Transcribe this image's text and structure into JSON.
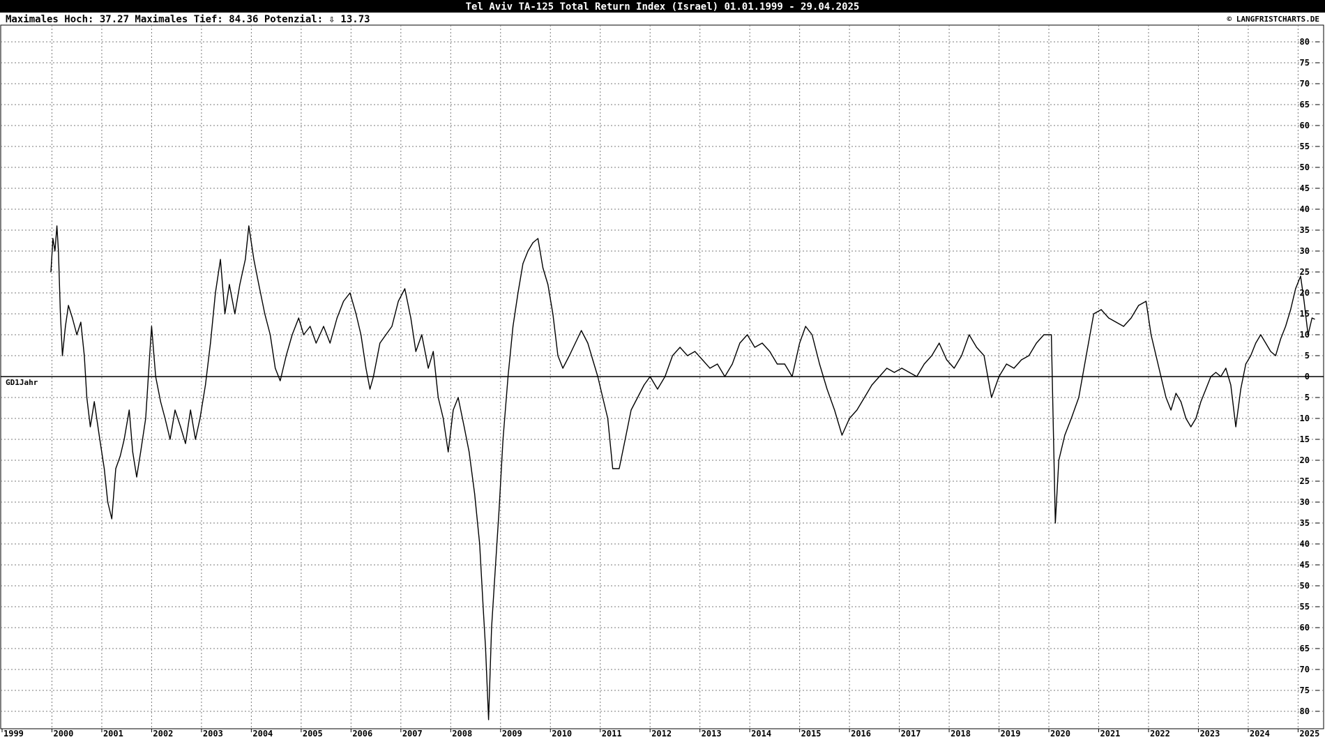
{
  "header": {
    "title": "Tel Aviv TA-125 Total Return Index (Israel) 01.01.1999 - 29.04.2025",
    "stats": "Maximales Hoch: 37.27  Maximales Tief: 84.36  Potenzial: ⇩ 13.73",
    "credit": "© LANGFRISTCHARTS.DE"
  },
  "chart_data": {
    "type": "line",
    "title": "Tel Aviv TA-125 Total Return Index (Israel) 01.01.1999 - 29.04.2025",
    "xlabel": "",
    "ylabel": "",
    "baseline_label": "GD1Jahr",
    "grid": true,
    "xlim": [
      1999.0,
      2025.33
    ],
    "ylim_note": "positive values above baseline (0), negative values below; tick labels printed as absolute values",
    "ylim": [
      -84.36,
      84.36
    ],
    "x_ticks": [
      "1999",
      "2000",
      "2001",
      "2002",
      "2003",
      "2004",
      "2005",
      "2006",
      "2007",
      "2008",
      "2009",
      "2010",
      "2011",
      "2012",
      "2013",
      "2014",
      "2015",
      "2016",
      "2017",
      "2018",
      "2019",
      "2020",
      "2021",
      "2022",
      "2023",
      "2024",
      "2025"
    ],
    "y_ticks": [
      80,
      75,
      70,
      65,
      60,
      55,
      50,
      45,
      40,
      35,
      30,
      25,
      20,
      15,
      10,
      5,
      0,
      -5,
      -10,
      -15,
      -20,
      -25,
      -30,
      -35,
      -40,
      -45,
      -50,
      -55,
      -60,
      -65,
      -70,
      -75,
      -80
    ],
    "series": [
      {
        "values": [
          [
            1999.98,
            25
          ],
          [
            2000.02,
            33
          ],
          [
            2000.06,
            30
          ],
          [
            2000.1,
            36
          ],
          [
            2000.13,
            30
          ],
          [
            2000.17,
            15
          ],
          [
            2000.21,
            5
          ],
          [
            2000.27,
            12
          ],
          [
            2000.33,
            17
          ],
          [
            2000.41,
            14
          ],
          [
            2000.5,
            10
          ],
          [
            2000.58,
            13
          ],
          [
            2000.65,
            5
          ],
          [
            2000.7,
            -5
          ],
          [
            2000.77,
            -12
          ],
          [
            2000.85,
            -6
          ],
          [
            2000.96,
            -15
          ],
          [
            2001.05,
            -22
          ],
          [
            2001.12,
            -30
          ],
          [
            2001.2,
            -34
          ],
          [
            2001.28,
            -22
          ],
          [
            2001.37,
            -19
          ],
          [
            2001.45,
            -15
          ],
          [
            2001.55,
            -8
          ],
          [
            2001.62,
            -18
          ],
          [
            2001.7,
            -24
          ],
          [
            2001.78,
            -18
          ],
          [
            2001.88,
            -10
          ],
          [
            2001.96,
            5
          ],
          [
            2002.0,
            12
          ],
          [
            2002.08,
            0
          ],
          [
            2002.18,
            -6
          ],
          [
            2002.27,
            -10
          ],
          [
            2002.37,
            -15
          ],
          [
            2002.47,
            -8
          ],
          [
            2002.58,
            -12
          ],
          [
            2002.68,
            -16
          ],
          [
            2002.78,
            -8
          ],
          [
            2002.88,
            -15
          ],
          [
            2002.97,
            -10
          ],
          [
            2003.08,
            -2
          ],
          [
            2003.18,
            8
          ],
          [
            2003.28,
            20
          ],
          [
            2003.38,
            28
          ],
          [
            2003.47,
            15
          ],
          [
            2003.56,
            22
          ],
          [
            2003.67,
            15
          ],
          [
            2003.77,
            22
          ],
          [
            2003.88,
            28
          ],
          [
            2003.95,
            36
          ],
          [
            2004.05,
            28
          ],
          [
            2004.15,
            22
          ],
          [
            2004.27,
            15
          ],
          [
            2004.38,
            10
          ],
          [
            2004.48,
            2
          ],
          [
            2004.58,
            -1
          ],
          [
            2004.7,
            5
          ],
          [
            2004.82,
            10
          ],
          [
            2004.95,
            14
          ],
          [
            2005.05,
            10
          ],
          [
            2005.18,
            12
          ],
          [
            2005.3,
            8
          ],
          [
            2005.45,
            12
          ],
          [
            2005.58,
            8
          ],
          [
            2005.72,
            14
          ],
          [
            2005.85,
            18
          ],
          [
            2005.98,
            20
          ],
          [
            2006.1,
            15
          ],
          [
            2006.2,
            10
          ],
          [
            2006.3,
            2
          ],
          [
            2006.38,
            -3
          ],
          [
            2006.45,
            0
          ],
          [
            2006.58,
            8
          ],
          [
            2006.7,
            10
          ],
          [
            2006.82,
            12
          ],
          [
            2006.95,
            18
          ],
          [
            2007.08,
            21
          ],
          [
            2007.2,
            14
          ],
          [
            2007.3,
            6
          ],
          [
            2007.42,
            10
          ],
          [
            2007.55,
            2
          ],
          [
            2007.65,
            6
          ],
          [
            2007.75,
            -5
          ],
          [
            2007.85,
            -10
          ],
          [
            2007.95,
            -18
          ],
          [
            2008.05,
            -8
          ],
          [
            2008.15,
            -5
          ],
          [
            2008.27,
            -12
          ],
          [
            2008.37,
            -18
          ],
          [
            2008.48,
            -28
          ],
          [
            2008.58,
            -40
          ],
          [
            2008.65,
            -55
          ],
          [
            2008.7,
            -65
          ],
          [
            2008.76,
            -82
          ],
          [
            2008.82,
            -60
          ],
          [
            2008.9,
            -45
          ],
          [
            2008.97,
            -32
          ],
          [
            2009.05,
            -15
          ],
          [
            2009.15,
            0
          ],
          [
            2009.25,
            12
          ],
          [
            2009.35,
            20
          ],
          [
            2009.45,
            27
          ],
          [
            2009.55,
            30
          ],
          [
            2009.65,
            32
          ],
          [
            2009.75,
            33
          ],
          [
            2009.85,
            26
          ],
          [
            2009.95,
            22
          ],
          [
            2010.05,
            15
          ],
          [
            2010.15,
            5
          ],
          [
            2010.25,
            2
          ],
          [
            2010.38,
            5
          ],
          [
            2010.5,
            8
          ],
          [
            2010.62,
            11
          ],
          [
            2010.75,
            8
          ],
          [
            2010.85,
            4
          ],
          [
            2010.95,
            0
          ],
          [
            2011.05,
            -5
          ],
          [
            2011.15,
            -10
          ],
          [
            2011.25,
            -22
          ],
          [
            2011.38,
            -22
          ],
          [
            2011.5,
            -15
          ],
          [
            2011.62,
            -8
          ],
          [
            2011.75,
            -5
          ],
          [
            2011.88,
            -2
          ],
          [
            2012.0,
            0
          ],
          [
            2012.15,
            -3
          ],
          [
            2012.3,
            0
          ],
          [
            2012.45,
            5
          ],
          [
            2012.6,
            7
          ],
          [
            2012.75,
            5
          ],
          [
            2012.9,
            6
          ],
          [
            2013.05,
            4
          ],
          [
            2013.2,
            2
          ],
          [
            2013.35,
            3
          ],
          [
            2013.5,
            0
          ],
          [
            2013.65,
            3
          ],
          [
            2013.8,
            8
          ],
          [
            2013.95,
            10
          ],
          [
            2014.1,
            7
          ],
          [
            2014.25,
            8
          ],
          [
            2014.4,
            6
          ],
          [
            2014.55,
            3
          ],
          [
            2014.7,
            3
          ],
          [
            2014.85,
            0
          ],
          [
            2015.0,
            8
          ],
          [
            2015.12,
            12
          ],
          [
            2015.25,
            10
          ],
          [
            2015.4,
            3
          ],
          [
            2015.55,
            -3
          ],
          [
            2015.7,
            -8
          ],
          [
            2015.85,
            -14
          ],
          [
            2016.0,
            -10
          ],
          [
            2016.15,
            -8
          ],
          [
            2016.3,
            -5
          ],
          [
            2016.45,
            -2
          ],
          [
            2016.6,
            0
          ],
          [
            2016.75,
            2
          ],
          [
            2016.9,
            1
          ],
          [
            2017.05,
            2
          ],
          [
            2017.2,
            1
          ],
          [
            2017.35,
            0
          ],
          [
            2017.5,
            3
          ],
          [
            2017.65,
            5
          ],
          [
            2017.8,
            8
          ],
          [
            2017.95,
            4
          ],
          [
            2018.1,
            2
          ],
          [
            2018.25,
            5
          ],
          [
            2018.4,
            10
          ],
          [
            2018.55,
            7
          ],
          [
            2018.7,
            5
          ],
          [
            2018.85,
            -5
          ],
          [
            2019.0,
            0
          ],
          [
            2019.15,
            3
          ],
          [
            2019.3,
            2
          ],
          [
            2019.45,
            4
          ],
          [
            2019.6,
            5
          ],
          [
            2019.75,
            8
          ],
          [
            2019.9,
            10
          ],
          [
            2020.05,
            10
          ],
          [
            2020.13,
            -35
          ],
          [
            2020.2,
            -20
          ],
          [
            2020.32,
            -14
          ],
          [
            2020.45,
            -10
          ],
          [
            2020.6,
            -5
          ],
          [
            2020.75,
            5
          ],
          [
            2020.9,
            15
          ],
          [
            2021.05,
            16
          ],
          [
            2021.2,
            14
          ],
          [
            2021.35,
            13
          ],
          [
            2021.5,
            12
          ],
          [
            2021.65,
            14
          ],
          [
            2021.8,
            17
          ],
          [
            2021.95,
            18
          ],
          [
            2022.05,
            10
          ],
          [
            2022.15,
            5
          ],
          [
            2022.25,
            0
          ],
          [
            2022.35,
            -5
          ],
          [
            2022.45,
            -8
          ],
          [
            2022.55,
            -4
          ],
          [
            2022.65,
            -6
          ],
          [
            2022.75,
            -10
          ],
          [
            2022.85,
            -12
          ],
          [
            2022.95,
            -10
          ],
          [
            2023.05,
            -6
          ],
          [
            2023.15,
            -3
          ],
          [
            2023.25,
            0
          ],
          [
            2023.35,
            1
          ],
          [
            2023.45,
            0
          ],
          [
            2023.55,
            2
          ],
          [
            2023.65,
            -2
          ],
          [
            2023.75,
            -12
          ],
          [
            2023.85,
            -3
          ],
          [
            2023.95,
            3
          ],
          [
            2024.05,
            5
          ],
          [
            2024.15,
            8
          ],
          [
            2024.25,
            10
          ],
          [
            2024.35,
            8
          ],
          [
            2024.45,
            6
          ],
          [
            2024.55,
            5
          ],
          [
            2024.65,
            9
          ],
          [
            2024.75,
            12
          ],
          [
            2024.85,
            16
          ],
          [
            2024.95,
            21
          ],
          [
            2025.05,
            24
          ],
          [
            2025.12,
            18
          ],
          [
            2025.2,
            10
          ],
          [
            2025.28,
            14
          ],
          [
            2025.33,
            13.73
          ]
        ]
      }
    ]
  }
}
